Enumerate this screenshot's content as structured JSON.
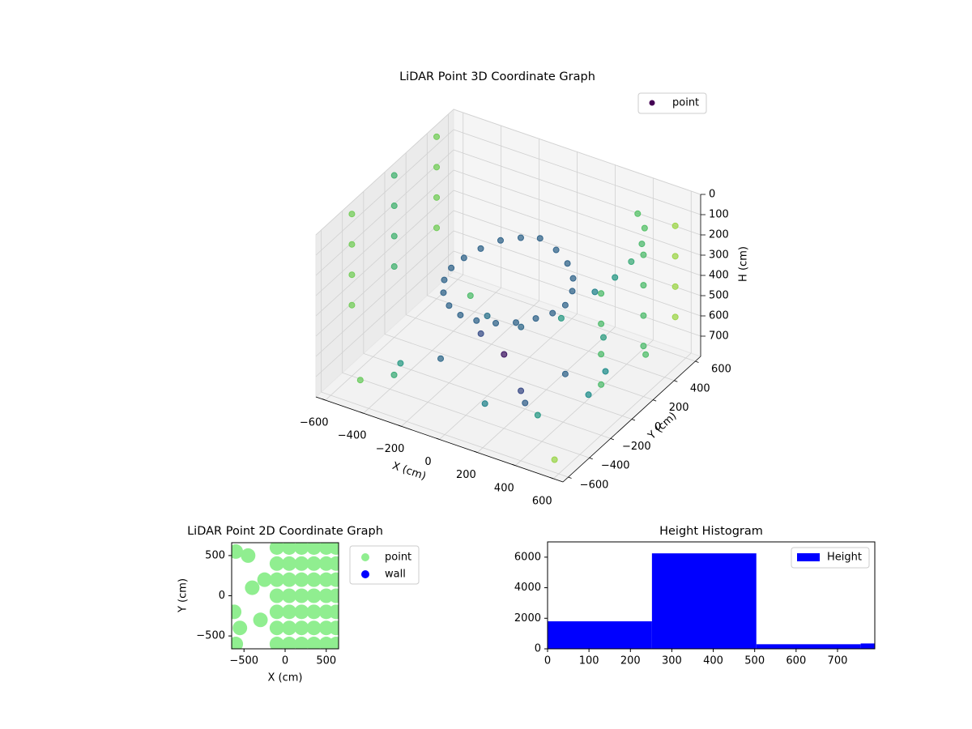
{
  "chart_data": [
    {
      "type": "scatter3d",
      "title": "LiDAR Point 3D Coordinate Graph",
      "xlabel": "X (cm)",
      "ylabel": "Y (cm)",
      "zlabel": "H (cm)",
      "xlim": [
        -650,
        650
      ],
      "ylim": [
        -650,
        650
      ],
      "zlim": [
        800,
        0
      ],
      "xticks": [
        {
          "value": -600,
          "label": "−600"
        },
        {
          "value": -400,
          "label": "−400"
        },
        {
          "value": -200,
          "label": "−200"
        },
        0,
        200,
        400,
        600
      ],
      "yticks": [
        {
          "value": -600,
          "label": "−600"
        },
        {
          "value": -400,
          "label": "−400"
        },
        {
          "value": -200,
          "label": "−200"
        },
        0,
        200,
        400,
        600
      ],
      "zticks": [
        0,
        100,
        200,
        300,
        400,
        500,
        600,
        700
      ],
      "grid": true,
      "colormap": "viridis",
      "legend": "upper right",
      "series": [
        {
          "name": "point",
          "color": "#440154",
          "x": [
            300,
            285,
            243,
            176,
            93,
            0,
            -93,
            -176,
            -243,
            -285,
            -300,
            -285,
            -243,
            -176,
            -93,
            0,
            93,
            176,
            243,
            285,
            400,
            450,
            480,
            480,
            450,
            380,
            -500,
            -400,
            -300,
            -200,
            -100,
            0,
            100,
            200,
            300,
            400,
            500,
            -450,
            -250,
            -50,
            150,
            350,
            550,
            -350,
            250,
            450,
            -600,
            -600,
            -600,
            -600,
            -600,
            -600,
            -600,
            -600,
            -600,
            -600,
            -600,
            -600,
            600,
            600,
            600,
            600,
            600,
            600,
            600,
            600,
            600,
            600,
            600,
            600
          ],
          "y": [
            0,
            93,
            176,
            243,
            285,
            300,
            285,
            243,
            176,
            93,
            0,
            -93,
            -176,
            -243,
            -285,
            -300,
            -285,
            -243,
            -176,
            -93,
            100,
            200,
            300,
            400,
            480,
            540,
            -500,
            -300,
            -100,
            100,
            300,
            500,
            -400,
            -200,
            0,
            200,
            400,
            450,
            250,
            50,
            -150,
            -350,
            -550,
            -450,
            450,
            -50,
            -400,
            -400,
            -400,
            -400,
            0,
            0,
            0,
            0,
            400,
            400,
            400,
            400,
            -200,
            -200,
            -200,
            -200,
            200,
            200,
            200,
            200,
            500,
            500,
            500,
            500
          ],
          "z": [
            350,
            330,
            320,
            300,
            280,
            260,
            280,
            300,
            330,
            350,
            360,
            370,
            380,
            390,
            390,
            380,
            370,
            360,
            350,
            350,
            300,
            260,
            220,
            180,
            150,
            130,
            740,
            720,
            760,
            700,
            730,
            750,
            710,
            770,
            690,
            740,
            720,
            760,
            700,
            730,
            750,
            710,
            770,
            690,
            740,
            720,
            0,
            150,
            300,
            450,
            0,
            150,
            300,
            450,
            0,
            150,
            300,
            450,
            100,
            250,
            400,
            550,
            100,
            250,
            400,
            550,
            100,
            250,
            400,
            550
          ]
        }
      ]
    },
    {
      "type": "scatter",
      "title": "LiDAR Point 2D Coordinate Graph",
      "xlabel": "X (cm)",
      "ylabel": "Y (cm)",
      "xlim": [
        -650,
        650
      ],
      "ylim": [
        -660,
        660
      ],
      "xticks": [
        {
          "value": -500,
          "label": "−500"
        },
        0,
        500
      ],
      "yticks": [
        {
          "value": -500,
          "label": "−500"
        },
        0,
        500
      ],
      "legend": "outside right",
      "series": [
        {
          "name": "point",
          "color": "#90ee90",
          "x": [
            -100,
            -100,
            -100,
            -100,
            -100,
            -100,
            -100,
            50,
            50,
            50,
            50,
            50,
            50,
            50,
            200,
            200,
            200,
            200,
            200,
            200,
            200,
            350,
            350,
            350,
            350,
            350,
            350,
            350,
            500,
            500,
            500,
            500,
            500,
            500,
            500,
            620,
            620,
            620,
            620,
            620,
            620,
            620,
            -600,
            -550,
            -620,
            -450,
            -400,
            -300,
            -250,
            -600
          ],
          "y": [
            -600,
            -400,
            -200,
            0,
            200,
            400,
            600,
            -600,
            -400,
            -200,
            0,
            200,
            400,
            600,
            -600,
            -400,
            -200,
            0,
            200,
            400,
            600,
            -600,
            -400,
            -200,
            0,
            200,
            400,
            600,
            -600,
            -400,
            -200,
            0,
            200,
            400,
            600,
            -600,
            -400,
            -200,
            0,
            200,
            400,
            600,
            550,
            -400,
            -200,
            500,
            100,
            -300,
            200,
            -600
          ]
        },
        {
          "name": "wall",
          "color": "#0000ff",
          "x": [],
          "y": []
        }
      ]
    },
    {
      "type": "histogram",
      "title": "Height Histogram",
      "xlim": [
        0,
        790
      ],
      "ylim": [
        0,
        7000
      ],
      "xticks": [
        0,
        100,
        200,
        300,
        400,
        500,
        600,
        700
      ],
      "yticks": [
        0,
        2000,
        4000,
        6000
      ],
      "legend": "upper right",
      "series": [
        {
          "name": "Height",
          "color": "#0000ff",
          "bins": [
            0,
            252,
            504,
            756,
            790
          ],
          "values": [
            1800,
            6250,
            300,
            350
          ]
        }
      ]
    }
  ]
}
